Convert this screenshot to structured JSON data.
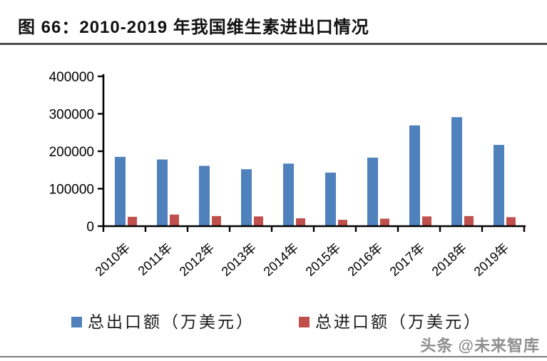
{
  "title": "图 66：2010-2019 年我国维生素进出口情况",
  "watermark": "头条 @未来智库",
  "legend": {
    "export_label": "总出口额（万美元）",
    "import_label": "总进口额（万美元）"
  },
  "colors": {
    "export_blue": "#4F81BD",
    "import_red": "#C0504D",
    "axis": "#000000",
    "divider": "#4d4d4d"
  },
  "chart_data": {
    "type": "bar",
    "title": "2010-2019 年我国维生素进出口情况",
    "categories": [
      "2010年",
      "2011年",
      "2012年",
      "2013年",
      "2014年",
      "2015年",
      "2016年",
      "2017年",
      "2018年",
      "2019年"
    ],
    "series": [
      {
        "name": "总出口额（万美元）",
        "color": "#4F81BD",
        "values": [
          185000,
          178000,
          161000,
          152000,
          167000,
          143000,
          183000,
          269000,
          291000,
          217000
        ]
      },
      {
        "name": "总进口额（万美元）",
        "color": "#C0504D",
        "values": [
          25000,
          31000,
          27000,
          26000,
          21000,
          17000,
          20000,
          26000,
          27000,
          24000
        ]
      }
    ],
    "xlabel": "",
    "ylabel": "",
    "ylim": [
      0,
      400000
    ],
    "yticks": [
      0,
      100000,
      200000,
      300000,
      400000
    ],
    "grid": false,
    "legend_position": "bottom",
    "x_tick_rotation": -42
  }
}
